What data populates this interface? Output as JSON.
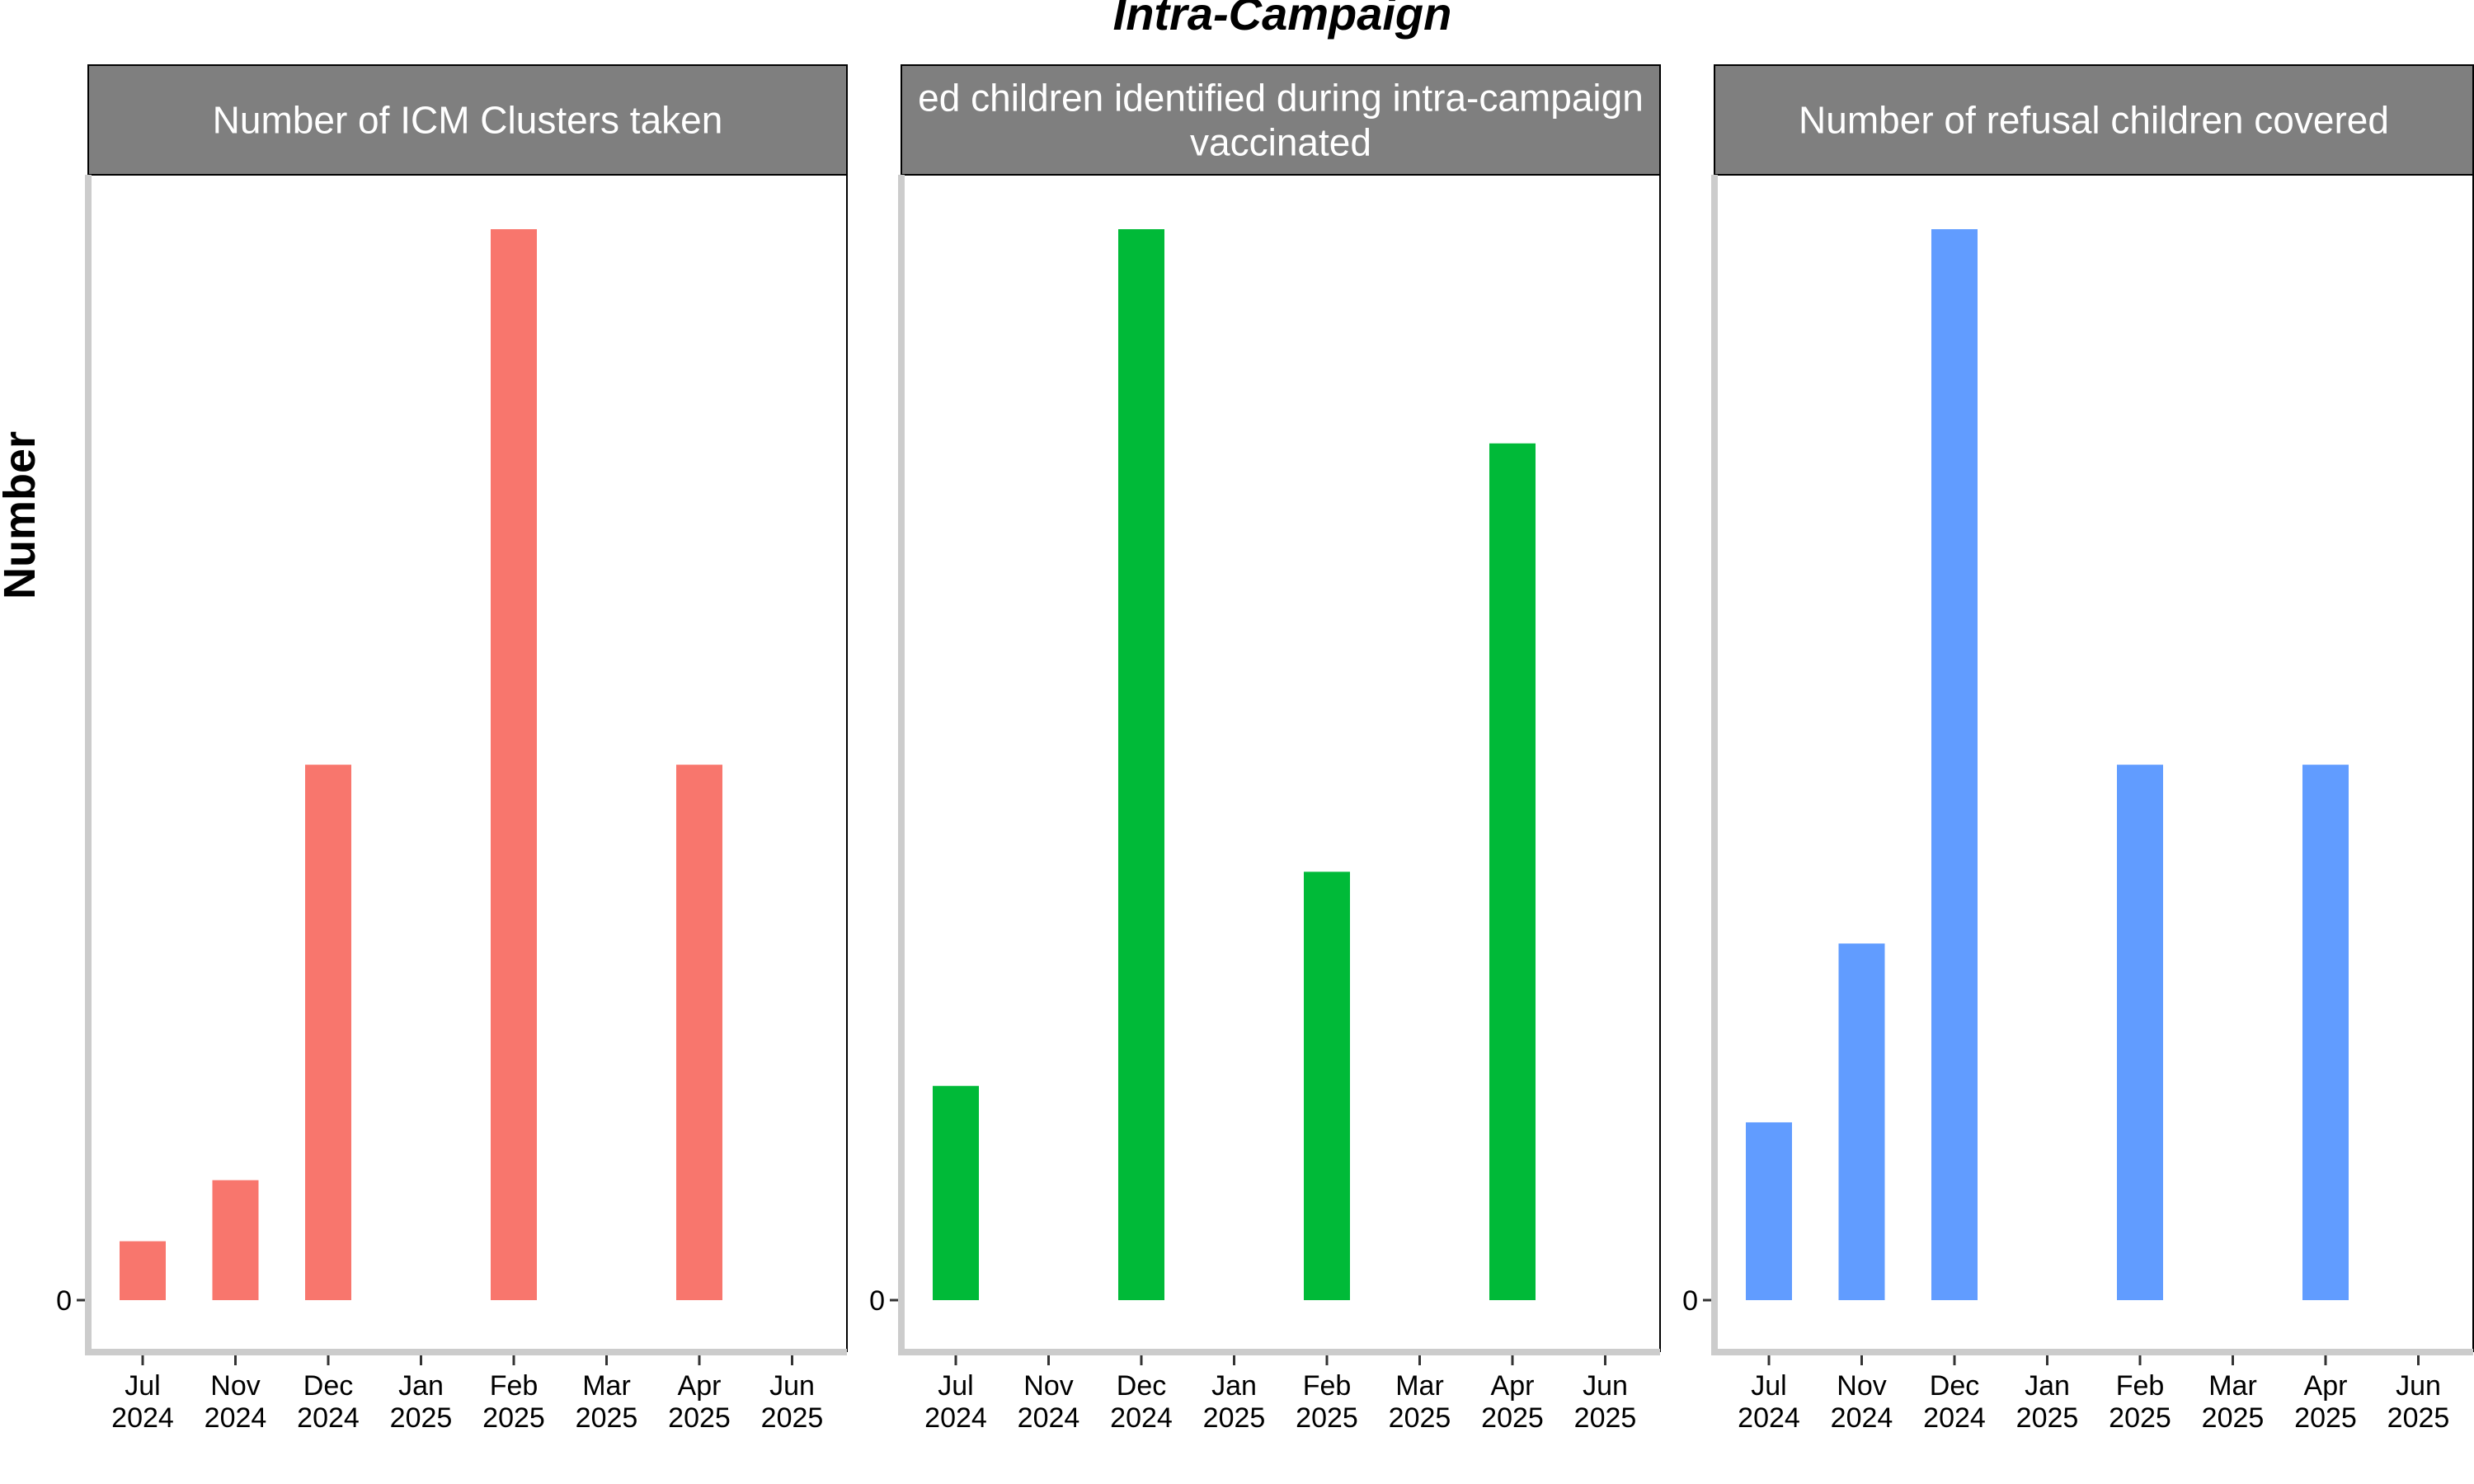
{
  "chart_data": {
    "title": "Intra-Campaign",
    "ylabel": "Number",
    "ytick_label": "0",
    "x_months": [
      [
        "Jul",
        "2024"
      ],
      [
        "Nov",
        "2024"
      ],
      [
        "Dec",
        "2024"
      ],
      [
        "Jan",
        "2025"
      ],
      [
        "Feb",
        "2025"
      ],
      [
        "Mar",
        "2025"
      ],
      [
        "Apr",
        "2025"
      ],
      [
        "Jun",
        "2025"
      ]
    ],
    "panels": [
      {
        "type": "bar",
        "title_lines": [
          "Number of ICM Clusters taken"
        ],
        "color": "#F8766D",
        "ylim": [
          0,
          1.05
        ],
        "values": [
          0.055,
          0.112,
          0.5,
          0,
          1.0,
          0,
          0.5,
          0
        ]
      },
      {
        "type": "bar",
        "title_lines": [
          "ed children identified during intra-campaign",
          "vaccinated"
        ],
        "color": "#00BA38",
        "ylim": [
          0,
          1.05
        ],
        "values": [
          0.2,
          0,
          1.0,
          0,
          0.4,
          0,
          0.8,
          0
        ]
      },
      {
        "type": "bar",
        "title_lines": [
          "Number of refusal children covered"
        ],
        "color": "#619CFF",
        "ylim": [
          0,
          1.05
        ],
        "values": [
          0.166,
          0.333,
          1.0,
          0,
          0.5,
          0,
          0.5,
          0
        ]
      }
    ]
  }
}
